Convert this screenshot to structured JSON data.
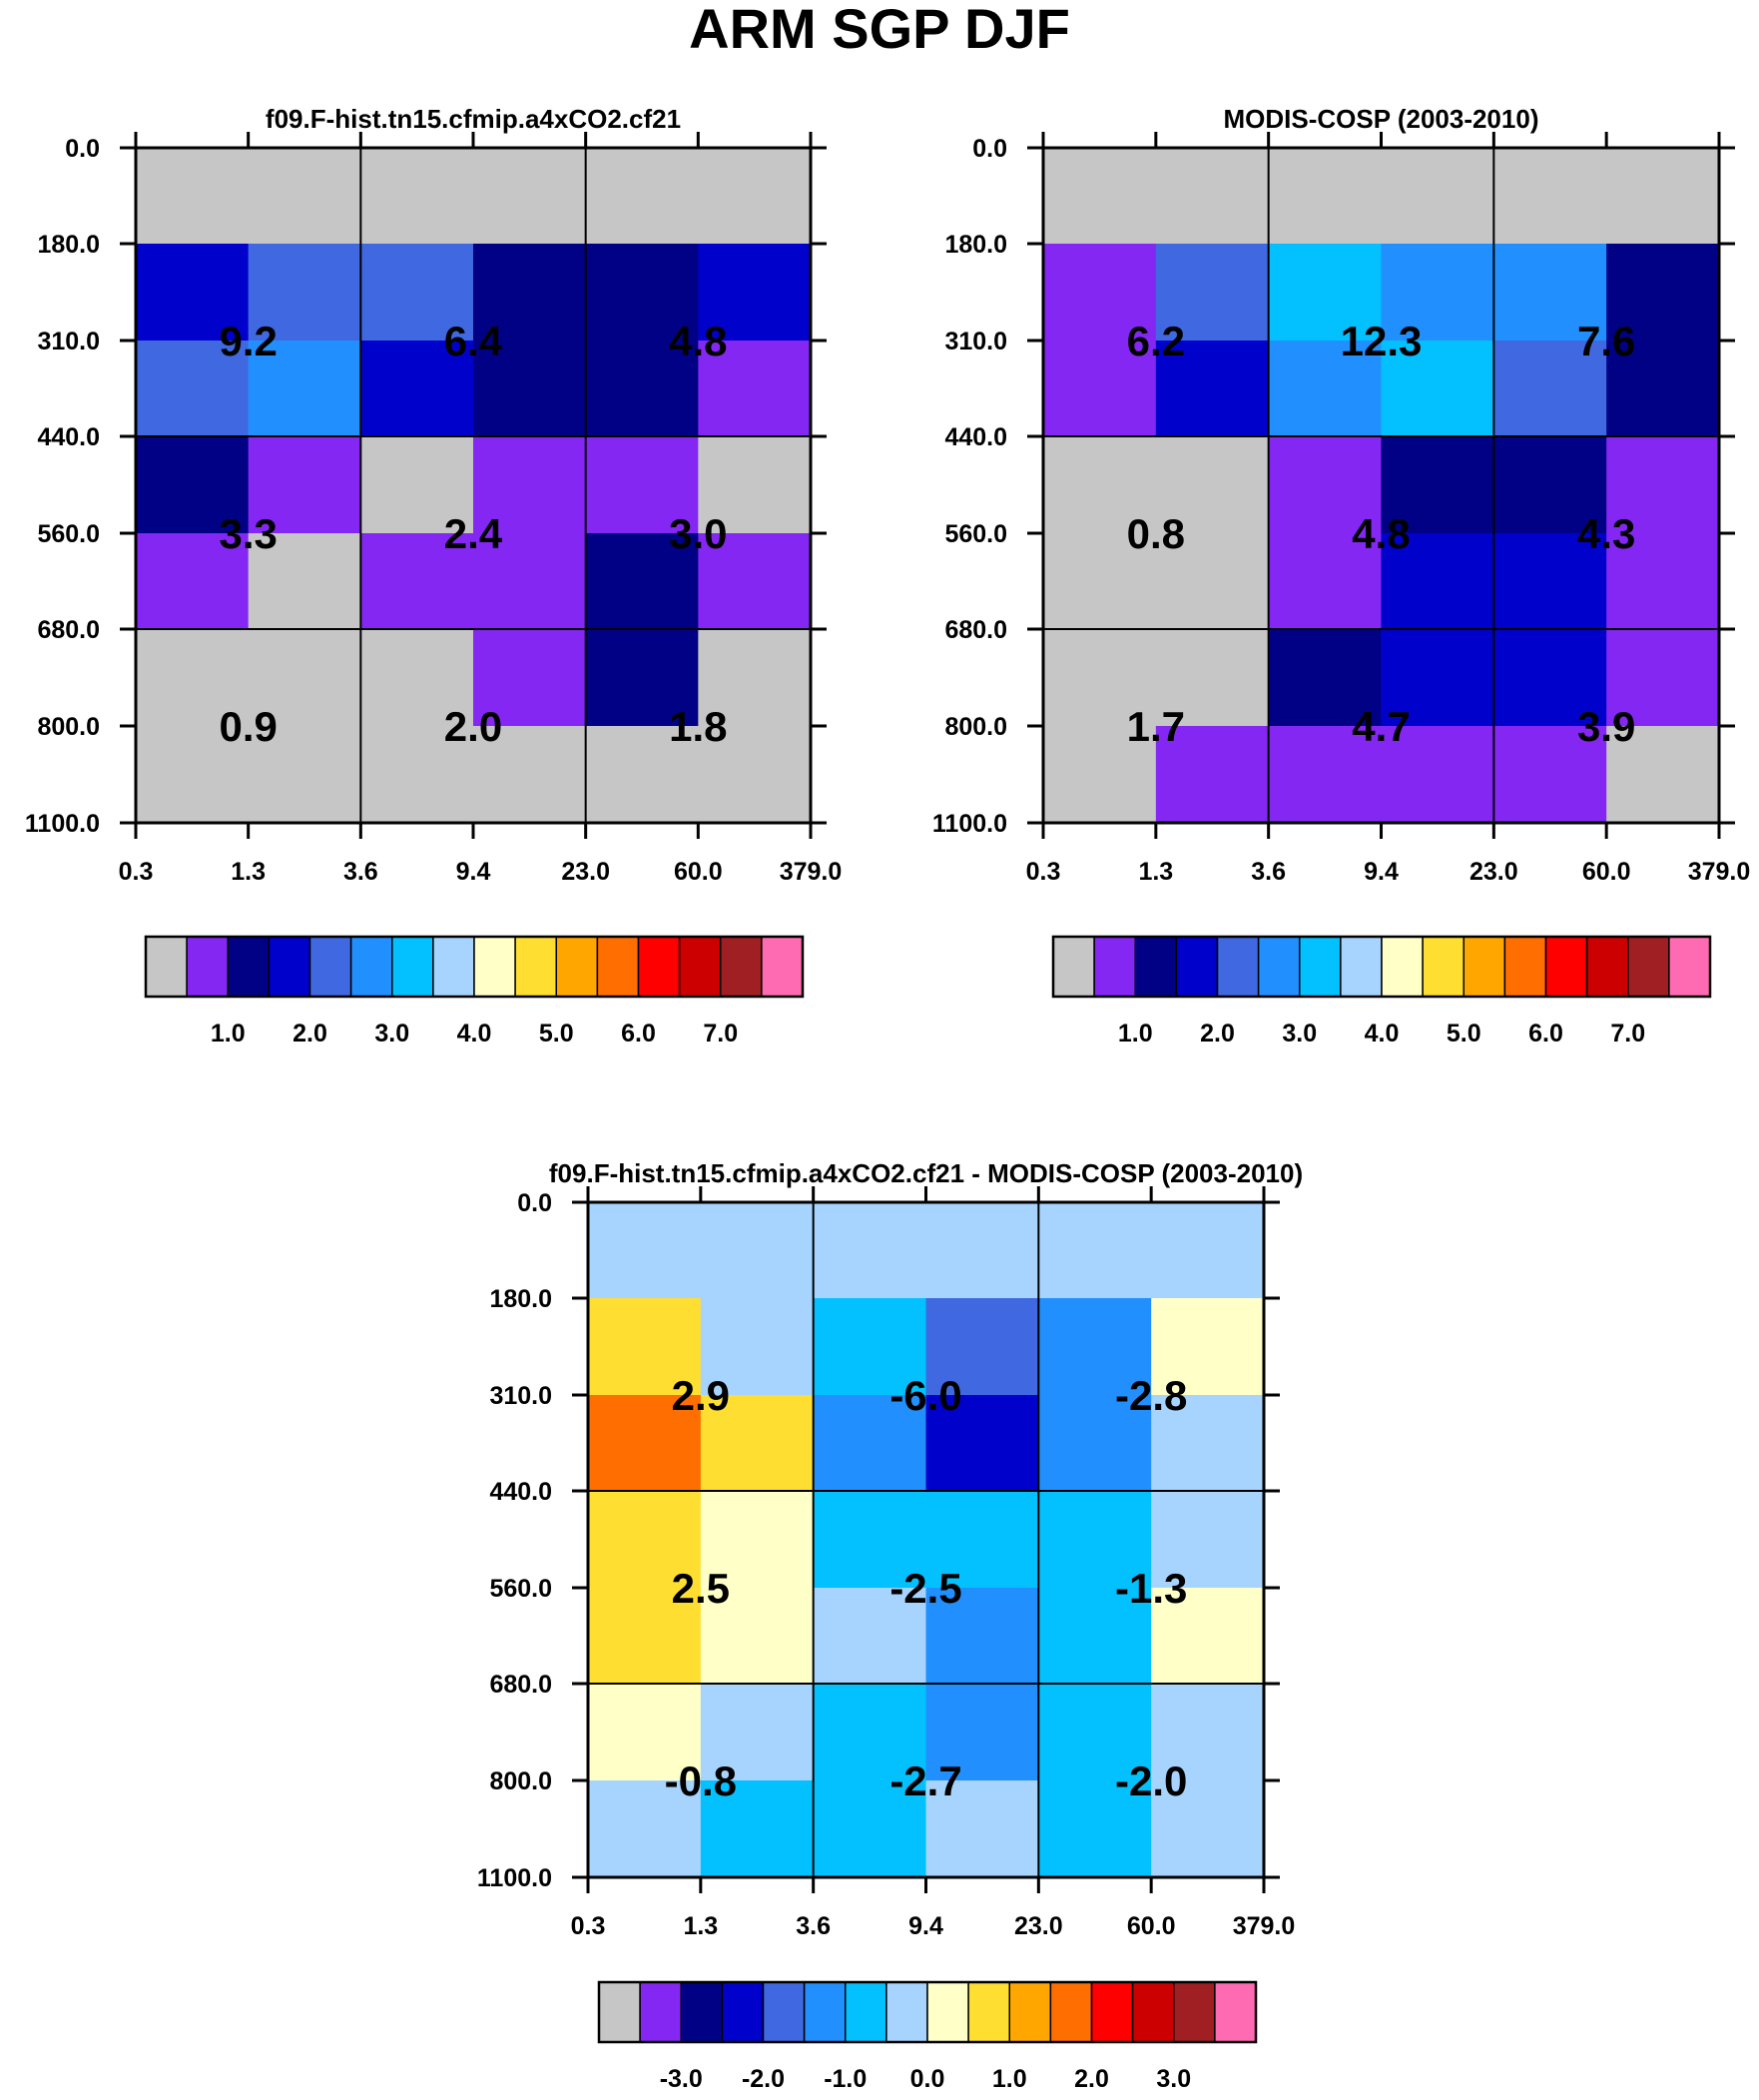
{
  "page_title": "ARM SGP DJF",
  "colors": {
    "sequential": [
      "#c6c6c6",
      "#8427f2",
      "#010186",
      "#0101cc",
      "#4069e1",
      "#2190fe",
      "#02c1fe",
      "#a6d4fe",
      "#ffffc8",
      "#ffde32",
      "#ffa700",
      "#ff6e00",
      "#fe0000",
      "#cc0000",
      "#a01f22",
      "#ff6bb3"
    ],
    "diverging": [
      "#c6c6c6",
      "#8427f2",
      "#010186",
      "#0101cc",
      "#4069e1",
      "#2190fe",
      "#02c1fe",
      "#a6d4fe",
      "#ffffc8",
      "#ffde32",
      "#ffa700",
      "#ff6e00",
      "#fe0000",
      "#cc0000",
      "#a01f22",
      "#ff6bb3"
    ]
  },
  "chart_data": [
    {
      "type": "heatmap",
      "title": "f09.F-hist.tn15.cfmip.a4xCO2.cf21",
      "xticks": [
        "0.3",
        "1.3",
        "3.6",
        "9.4",
        "23.0",
        "60.0",
        "379.0"
      ],
      "yticks": [
        "0.0",
        "180.0",
        "310.0",
        "440.0",
        "560.0",
        "680.0",
        "800.0",
        "1100.0"
      ],
      "cells": [
        [
          0,
          0,
          0,
          0,
          0,
          0
        ],
        [
          3,
          4,
          4,
          2,
          2,
          3
        ],
        [
          4,
          5,
          3,
          2,
          2,
          1
        ],
        [
          2,
          1,
          0,
          1,
          1,
          0
        ],
        [
          1,
          0,
          1,
          1,
          2,
          1
        ],
        [
          0,
          0,
          0,
          1,
          2,
          0
        ],
        [
          0,
          0,
          0,
          0,
          0,
          0
        ]
      ],
      "box_values": [
        [
          "9.2",
          "6.4",
          "4.8"
        ],
        [
          "3.3",
          "2.4",
          "3.0"
        ],
        [
          "0.9",
          "2.0",
          "1.8"
        ]
      ],
      "colorbar": {
        "palette": "sequential",
        "labels": [
          "1.0",
          "2.0",
          "3.0",
          "4.0",
          "5.0",
          "6.0",
          "7.0"
        ]
      }
    },
    {
      "type": "heatmap",
      "title": "MODIS-COSP (2003-2010)",
      "xticks": [
        "0.3",
        "1.3",
        "3.6",
        "9.4",
        "23.0",
        "60.0",
        "379.0"
      ],
      "yticks": [
        "0.0",
        "180.0",
        "310.0",
        "440.0",
        "560.0",
        "680.0",
        "800.0",
        "1100.0"
      ],
      "cells": [
        [
          0,
          0,
          0,
          0,
          0,
          0
        ],
        [
          1,
          4,
          6,
          5,
          5,
          2
        ],
        [
          1,
          3,
          5,
          6,
          4,
          2
        ],
        [
          0,
          0,
          1,
          2,
          2,
          1
        ],
        [
          0,
          0,
          1,
          3,
          3,
          1
        ],
        [
          0,
          0,
          2,
          3,
          3,
          1
        ],
        [
          0,
          1,
          1,
          1,
          1,
          0
        ]
      ],
      "box_values": [
        [
          "6.2",
          "12.3",
          "7.6"
        ],
        [
          "0.8",
          "4.8",
          "4.3"
        ],
        [
          "1.7",
          "4.7",
          "3.9"
        ]
      ],
      "colorbar": {
        "palette": "sequential",
        "labels": [
          "1.0",
          "2.0",
          "3.0",
          "4.0",
          "5.0",
          "6.0",
          "7.0"
        ]
      }
    },
    {
      "type": "heatmap",
      "title": "f09.F-hist.tn15.cfmip.a4xCO2.cf21 - MODIS-COSP (2003-2010)",
      "xticks": [
        "0.3",
        "1.3",
        "3.6",
        "9.4",
        "23.0",
        "60.0",
        "379.0"
      ],
      "yticks": [
        "0.0",
        "180.0",
        "310.0",
        "440.0",
        "560.0",
        "680.0",
        "800.0",
        "1100.0"
      ],
      "cells": [
        [
          7,
          7,
          7,
          7,
          7,
          7
        ],
        [
          9,
          7,
          6,
          4,
          5,
          8
        ],
        [
          11,
          9,
          5,
          3,
          5,
          7
        ],
        [
          9,
          8,
          6,
          6,
          6,
          7
        ],
        [
          9,
          8,
          7,
          5,
          6,
          8
        ],
        [
          8,
          7,
          6,
          5,
          6,
          7
        ],
        [
          7,
          6,
          6,
          7,
          6,
          7
        ]
      ],
      "box_values": [
        [
          "2.9",
          "-6.0",
          "-2.8"
        ],
        [
          "2.5",
          "-2.5",
          "-1.3"
        ],
        [
          "-0.8",
          "-2.7",
          "-2.0"
        ]
      ],
      "colorbar": {
        "palette": "diverging",
        "labels": [
          "-3.0",
          "-2.0",
          "-1.0",
          "0.0",
          "1.0",
          "2.0",
          "3.0"
        ]
      }
    }
  ]
}
